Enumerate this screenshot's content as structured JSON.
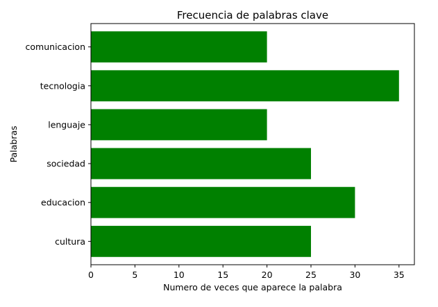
{
  "chart_data": {
    "type": "bar",
    "orientation": "horizontal",
    "title": "Frecuencia de palabras clave",
    "xlabel": "Numero de veces que aparece la palabra",
    "ylabel": "Palabras",
    "categories": [
      "cultura",
      "educacion",
      "sociedad",
      "lenguaje",
      "tecnologia",
      "comunicacion"
    ],
    "values": [
      25,
      30,
      25,
      20,
      35,
      20
    ],
    "xticks": [
      0,
      5,
      10,
      15,
      20,
      25,
      30,
      35
    ],
    "xlim": [
      0,
      36.75
    ],
    "bar_color": "#008000",
    "grid": false,
    "legend": "none"
  }
}
